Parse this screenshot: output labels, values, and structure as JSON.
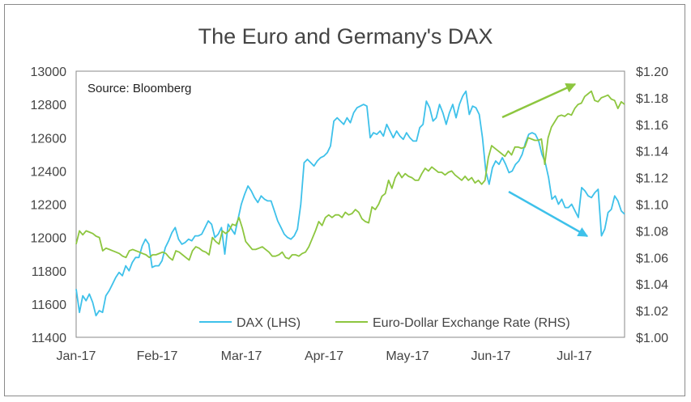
{
  "chart_data": {
    "type": "line",
    "title": "The Euro and Germany's DAX",
    "annotation": "Source: Bloomberg",
    "x_ticks": [
      "Jan-17",
      "Feb-17",
      "Mar-17",
      "Apr-17",
      "May-17",
      "Jun-17",
      "Jul-17"
    ],
    "y_left": {
      "min": 11400,
      "max": 13000,
      "ticks": [
        "11400",
        "11600",
        "11800",
        "12000",
        "12200",
        "12400",
        "12600",
        "12800",
        "13000"
      ]
    },
    "y_right": {
      "min": 1.0,
      "max": 1.2,
      "ticks": [
        "$1.00",
        "$1.02",
        "$1.04",
        "$1.06",
        "$1.08",
        "$1.10",
        "$1.12",
        "$1.14",
        "$1.16",
        "$1.18",
        "$1.20"
      ]
    },
    "grid": false,
    "legend_position": "bottom-center",
    "series": [
      {
        "name": "DAX (LHS)",
        "axis": "left",
        "color": "#3ec1ea",
        "values": [
          11690,
          11550,
          11650,
          11620,
          11660,
          11610,
          11530,
          11560,
          11550,
          11650,
          11680,
          11720,
          11760,
          11790,
          11770,
          11830,
          11800,
          11850,
          11880,
          11880,
          11950,
          11990,
          11960,
          11820,
          11830,
          11830,
          11860,
          11940,
          11980,
          12030,
          12060,
          11990,
          11960,
          11970,
          11990,
          11980,
          12010,
          12010,
          12020,
          12060,
          12100,
          12080,
          12000,
          12020,
          12060,
          11900,
          12080,
          12050,
          12020,
          12110,
          12200,
          12260,
          12310,
          12280,
          12240,
          12210,
          12250,
          12230,
          12220,
          12220,
          12160,
          12100,
          12060,
          12020,
          12000,
          11990,
          12010,
          12050,
          12200,
          12450,
          12470,
          12450,
          12430,
          12460,
          12480,
          12490,
          12510,
          12550,
          12700,
          12720,
          12700,
          12680,
          12720,
          12690,
          12750,
          12780,
          12790,
          12800,
          12790,
          12600,
          12630,
          12620,
          12640,
          12610,
          12680,
          12640,
          12600,
          12640,
          12610,
          12590,
          12630,
          12600,
          12580,
          12580,
          12660,
          12680,
          12820,
          12780,
          12700,
          12720,
          12800,
          12750,
          12680,
          12750,
          12800,
          12720,
          12800,
          12850,
          12880,
          12740,
          12790,
          12780,
          12740,
          12600,
          12400,
          12320,
          12420,
          12460,
          12440,
          12480,
          12440,
          12390,
          12400,
          12440,
          12460,
          12500,
          12570,
          12620,
          12630,
          12620,
          12580,
          12500,
          12450,
          12360,
          12230,
          12250,
          12200,
          12230,
          12180,
          12180,
          12200,
          12160,
          12120,
          12300,
          12280,
          12250,
          12240,
          12270,
          12290,
          12010,
          12050,
          12150,
          12170,
          12250,
          12220,
          12160,
          12140
        ]
      },
      {
        "name": "Euro-Dollar Exchange Rate (RHS)",
        "axis": "right",
        "color": "#8dc63f",
        "values": [
          1.07,
          1.08,
          1.077,
          1.08,
          1.079,
          1.078,
          1.076,
          1.075,
          1.065,
          1.067,
          1.066,
          1.065,
          1.064,
          1.063,
          1.061,
          1.06,
          1.065,
          1.066,
          1.065,
          1.064,
          1.063,
          1.062,
          1.06,
          1.062,
          1.062,
          1.063,
          1.064,
          1.063,
          1.06,
          1.058,
          1.065,
          1.064,
          1.062,
          1.06,
          1.058,
          1.065,
          1.068,
          1.067,
          1.065,
          1.064,
          1.062,
          1.075,
          1.072,
          1.07,
          1.08,
          1.078,
          1.08,
          1.085,
          1.084,
          1.09,
          1.082,
          1.072,
          1.069,
          1.066,
          1.066,
          1.067,
          1.068,
          1.066,
          1.064,
          1.061,
          1.061,
          1.062,
          1.064,
          1.06,
          1.059,
          1.062,
          1.062,
          1.061,
          1.063,
          1.064,
          1.068,
          1.074,
          1.08,
          1.087,
          1.084,
          1.09,
          1.092,
          1.09,
          1.092,
          1.092,
          1.09,
          1.094,
          1.092,
          1.093,
          1.096,
          1.094,
          1.089,
          1.087,
          1.086,
          1.098,
          1.096,
          1.1,
          1.106,
          1.108,
          1.118,
          1.112,
          1.12,
          1.124,
          1.12,
          1.123,
          1.121,
          1.12,
          1.118,
          1.118,
          1.123,
          1.127,
          1.125,
          1.128,
          1.126,
          1.124,
          1.124,
          1.122,
          1.124,
          1.125,
          1.122,
          1.12,
          1.118,
          1.121,
          1.118,
          1.12,
          1.116,
          1.118,
          1.115,
          1.118,
          1.135,
          1.144,
          1.142,
          1.14,
          1.138,
          1.136,
          1.14,
          1.137,
          1.143,
          1.143,
          1.142,
          1.143,
          1.15,
          1.149,
          1.148,
          1.148,
          1.149,
          1.13,
          1.15,
          1.158,
          1.162,
          1.166,
          1.167,
          1.166,
          1.168,
          1.167,
          1.172,
          1.175,
          1.176,
          1.181,
          1.183,
          1.185,
          1.178,
          1.177,
          1.18,
          1.181,
          1.182,
          1.179,
          1.178,
          1.172,
          1.177,
          1.175
        ]
      }
    ]
  }
}
